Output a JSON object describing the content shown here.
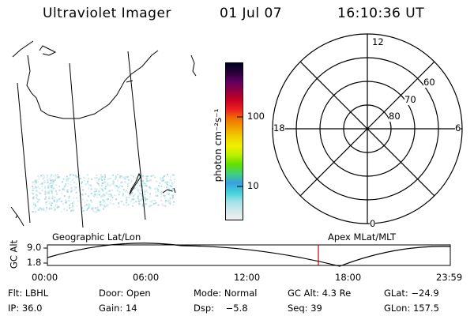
{
  "header": {
    "instrument": "Ultraviolet Imager",
    "date": "01 Jul 07",
    "time": "16:10:36 UT"
  },
  "map": {
    "label": "Geographic Lat/Lon"
  },
  "colorbar": {
    "unit_label": "photon cm⁻²s⁻¹",
    "tick_100": "100",
    "tick_10": "10",
    "colors": [
      "#f0f0f0",
      "#d0e8ec",
      "#9de0e6",
      "#40d0d8",
      "#3aa0e0",
      "#40d080",
      "#60e000",
      "#b8f000",
      "#f0f000",
      "#f0d000",
      "#f0a000",
      "#f07000",
      "#e82020",
      "#c80020",
      "#900040",
      "#600060",
      "#280038",
      "#000020"
    ]
  },
  "polar": {
    "label": "Apex MLat/MLT",
    "mlt_labels": {
      "top": "12",
      "left": "18",
      "right": "6",
      "bottom": "0"
    },
    "lat_labels": [
      "60",
      "70",
      "80"
    ]
  },
  "altitude_plot": {
    "ylabel": "GC Alt",
    "y_ticks": [
      "9.0",
      "1.8"
    ],
    "x_ticks": [
      "00:00",
      "06:00",
      "12:00",
      "18:00",
      "23:59"
    ],
    "current_time_marker": "16:10:36"
  },
  "info": {
    "flt": "Flt: LBHL",
    "door": "Door: Open",
    "mode": "Mode: Normal",
    "gc_alt": "GC Alt: 4.3 Re",
    "glat": "GLat: −24.9",
    "ip": "IP: 36.0",
    "gain": "Gain: 14",
    "dsp": "Dsp:    −5.8",
    "seq": "Seq: 39",
    "glon": "GLon: 157.5"
  }
}
